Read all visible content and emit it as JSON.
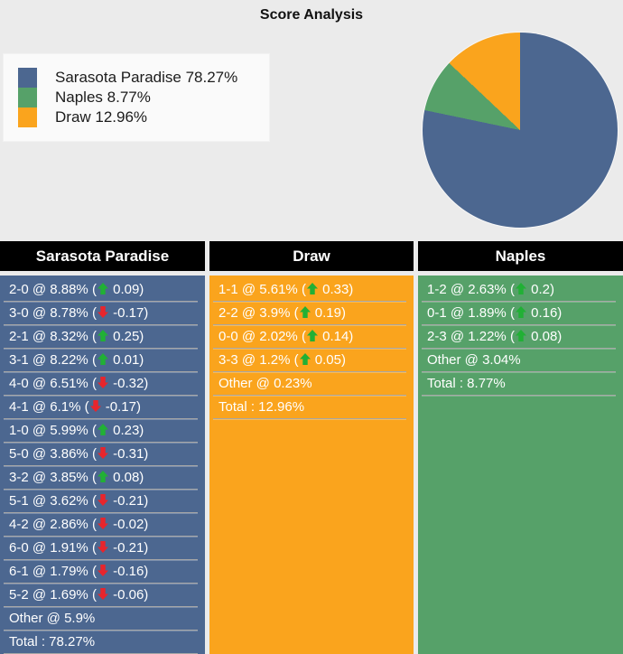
{
  "title": "Score Analysis",
  "colors": {
    "page_bg": "#ebebeb",
    "home_blue": "#4c6790",
    "away_green": "#56a169",
    "draw_orange": "#faa41d",
    "arrow_up": "#21b035",
    "arrow_down": "#e8252c",
    "header_bg": "#000000",
    "row_text": "#ffffff",
    "separator": "#a6a6a6"
  },
  "legend": {
    "items": [
      {
        "label": "Sarasota Paradise 78.27%",
        "color": "#4c6790"
      },
      {
        "label": "Naples 8.77%",
        "color": "#56a169"
      },
      {
        "label": "Draw 12.96%",
        "color": "#faa41d"
      }
    ]
  },
  "chart_data": {
    "type": "pie",
    "title": "Score Analysis",
    "labels": [
      "Sarasota Paradise",
      "Naples",
      "Draw"
    ],
    "values": [
      78.27,
      8.77,
      12.96
    ],
    "colors": [
      "#4c6790",
      "#56a169",
      "#faa41d"
    ],
    "start_angle_deg": 0,
    "direction": "clockwise",
    "legend_position": "upper-left"
  },
  "columns": [
    {
      "header": "Sarasota Paradise",
      "color": "#4c6790",
      "rows": [
        {
          "prefix": "2-0 @ 8.88% (",
          "dir": "up",
          "suffix": " 0.09)"
        },
        {
          "prefix": "3-0 @ 8.78% (",
          "dir": "down",
          "suffix": " -0.17)"
        },
        {
          "prefix": "2-1 @ 8.32% (",
          "dir": "up",
          "suffix": " 0.25)"
        },
        {
          "prefix": "3-1 @ 8.22% (",
          "dir": "up",
          "suffix": " 0.01)"
        },
        {
          "prefix": "4-0 @ 6.51% (",
          "dir": "down",
          "suffix": " -0.32)"
        },
        {
          "prefix": "4-1 @ 6.1% (",
          "dir": "down",
          "suffix": " -0.17)"
        },
        {
          "prefix": "1-0 @ 5.99% (",
          "dir": "up",
          "suffix": " 0.23)"
        },
        {
          "prefix": "5-0 @ 3.86% (",
          "dir": "down",
          "suffix": " -0.31)"
        },
        {
          "prefix": "3-2 @ 3.85% (",
          "dir": "up",
          "suffix": " 0.08)"
        },
        {
          "prefix": "5-1 @ 3.62% (",
          "dir": "down",
          "suffix": " -0.21)"
        },
        {
          "prefix": "4-2 @ 2.86% (",
          "dir": "down",
          "suffix": " -0.02)"
        },
        {
          "prefix": "6-0 @ 1.91% (",
          "dir": "down",
          "suffix": " -0.21)"
        },
        {
          "prefix": "6-1 @ 1.79% (",
          "dir": "down",
          "suffix": " -0.16)"
        },
        {
          "prefix": "5-2 @ 1.69% (",
          "dir": "down",
          "suffix": " -0.06)"
        },
        {
          "text": "Other @ 5.9%"
        },
        {
          "text": "Total : 78.27%"
        }
      ]
    },
    {
      "header": "Draw",
      "color": "#faa41d",
      "rows": [
        {
          "prefix": "1-1 @ 5.61% (",
          "dir": "up",
          "suffix": " 0.33)"
        },
        {
          "prefix": "2-2 @ 3.9% (",
          "dir": "up",
          "suffix": " 0.19)"
        },
        {
          "prefix": "0-0 @ 2.02% (",
          "dir": "up",
          "suffix": " 0.14)"
        },
        {
          "prefix": "3-3 @ 1.2% (",
          "dir": "up",
          "suffix": " 0.05)"
        },
        {
          "text": "Other @ 0.23%"
        },
        {
          "text": "Total : 12.96%"
        }
      ]
    },
    {
      "header": "Naples",
      "color": "#56a169",
      "rows": [
        {
          "prefix": "1-2 @ 2.63% (",
          "dir": "up",
          "suffix": " 0.2)"
        },
        {
          "prefix": "0-1 @ 1.89% (",
          "dir": "up",
          "suffix": " 0.16)"
        },
        {
          "prefix": "2-3 @ 1.22% (",
          "dir": "up",
          "suffix": " 0.08)"
        },
        {
          "text": "Other @ 3.04%"
        },
        {
          "text": "Total : 8.77%"
        }
      ]
    }
  ]
}
